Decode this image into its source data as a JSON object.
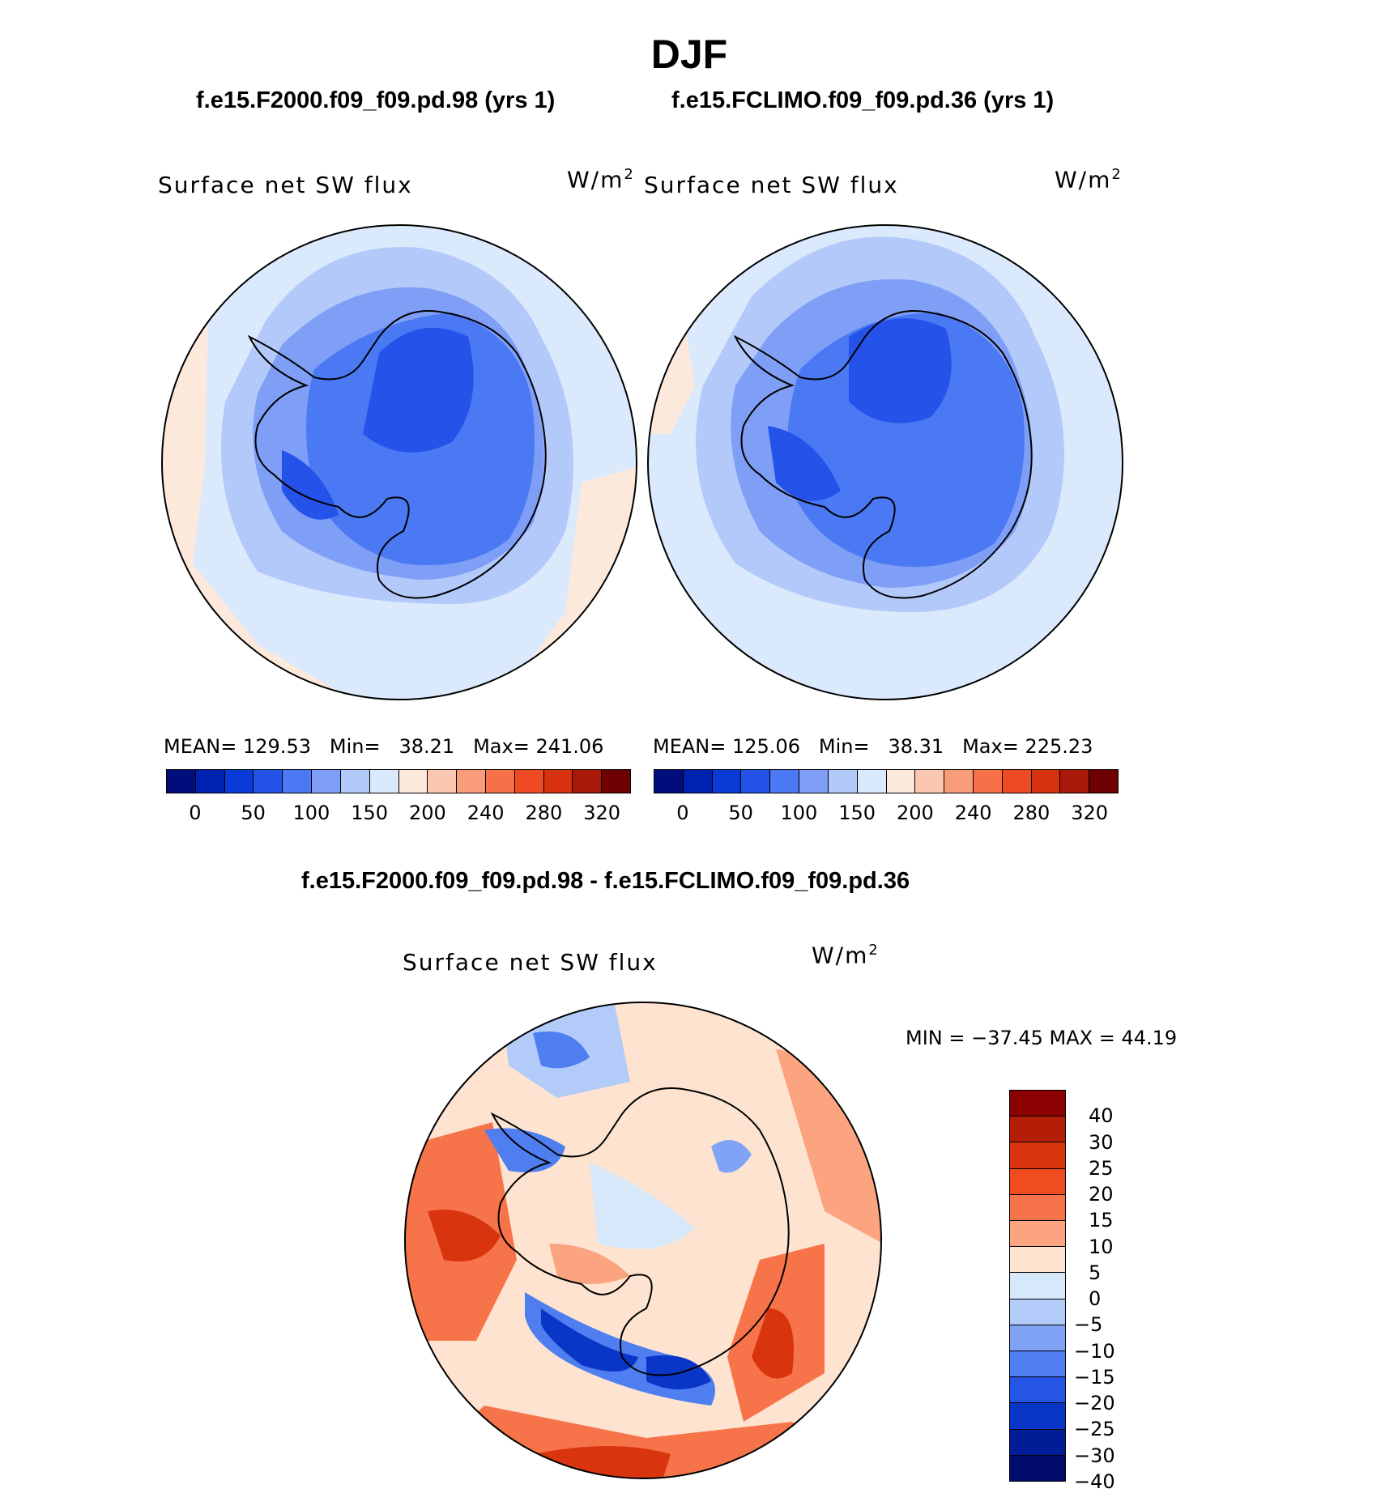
{
  "page": {
    "title": "DJF"
  },
  "panels": [
    {
      "case": "f.e15.F2000.f09_f09.pd.98 (yrs 1)",
      "variable": "Surface net SW flux",
      "units_base": "W/m",
      "units_exp": "2",
      "stats": {
        "mean_label": "MEAN=",
        "mean": "129.53",
        "min_label": "Min=",
        "min": "38.21",
        "max_label": "Max=",
        "max": "241.06"
      }
    },
    {
      "case": "f.e15.FCLIMO.f09_f09.pd.36 (yrs 1)",
      "variable": "Surface net SW flux",
      "units_base": "W/m",
      "units_exp": "2",
      "stats": {
        "mean_label": "MEAN=",
        "mean": "125.06",
        "min_label": "Min=",
        "min": "38.31",
        "max_label": "Max=",
        "max": "225.23"
      }
    }
  ],
  "abs_colorbar": {
    "colors": [
      "#000d7a",
      "#0022b0",
      "#0a3bd6",
      "#2553ea",
      "#4a79f3",
      "#7f9ef6",
      "#b3c9fa",
      "#dbe9fc",
      "#fde8dc",
      "#fcc7b0",
      "#f99c7a",
      "#f6704a",
      "#f04a24",
      "#d7310f",
      "#a8190a",
      "#6e0202"
    ],
    "ticks": [
      "0",
      "50",
      "100",
      "150",
      "200",
      "240",
      "280",
      "320"
    ]
  },
  "difference": {
    "title": "f.e15.F2000.f09_f09.pd.98 - f.e15.FCLIMO.f09_f09.pd.36",
    "variable": "Surface net SW flux",
    "units_base": "W/m",
    "units_exp": "2",
    "minmax": "MIN = −37.45 MAX =   44.19",
    "colorbar": {
      "colors": [
        "#8b0000",
        "#b51e06",
        "#d8350f",
        "#f14c1f",
        "#f7744a",
        "#fba47f",
        "#fde3d0",
        "#d7e8fb",
        "#b3cbf9",
        "#80a3f5",
        "#4e7ef0",
        "#2455e6",
        "#0a36c8",
        "#001c96",
        "#000b6b"
      ],
      "ticks": [
        "40",
        "30",
        "25",
        "20",
        "15",
        "10",
        "5",
        "0",
        "−5",
        "−10",
        "−15",
        "−20",
        "−25",
        "−30",
        "−40"
      ]
    }
  }
}
